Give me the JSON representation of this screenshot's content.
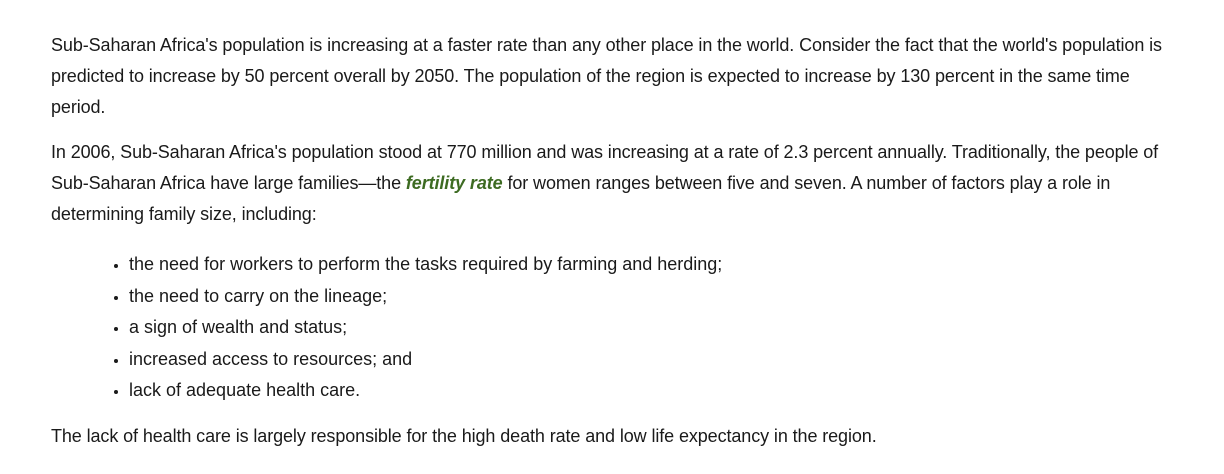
{
  "article": {
    "paragraph1": "Sub-Saharan Africa's population is increasing at a faster rate than any other place in the world. Consider the fact that the world's population is predicted to increase by 50 percent overall by 2050. The population of the region is expected to increase by 130 percent in the same time period.",
    "paragraph2": {
      "before_link": "In 2006, Sub-Saharan Africa's population stood at 770 million and was increasing at a rate of 2.3 percent annually. Traditionally, the people of Sub-Saharan Africa have large families—the ",
      "link_text": "fertility rate",
      "after_link": " for women ranges between five and seven. A number of factors play a role in determining family size, including:"
    },
    "factors": [
      "the need for workers to perform the tasks required by farming and herding;",
      "the need to carry on the lineage;",
      "a sign of wealth and status;",
      "increased access to resources; and",
      "lack of adequate health care."
    ],
    "paragraph3": "The lack of health care is largely responsible for the high death rate and low life expectancy in the region."
  },
  "colors": {
    "link": "#3d6b22",
    "text": "#1a1a1a",
    "background": "#ffffff"
  }
}
